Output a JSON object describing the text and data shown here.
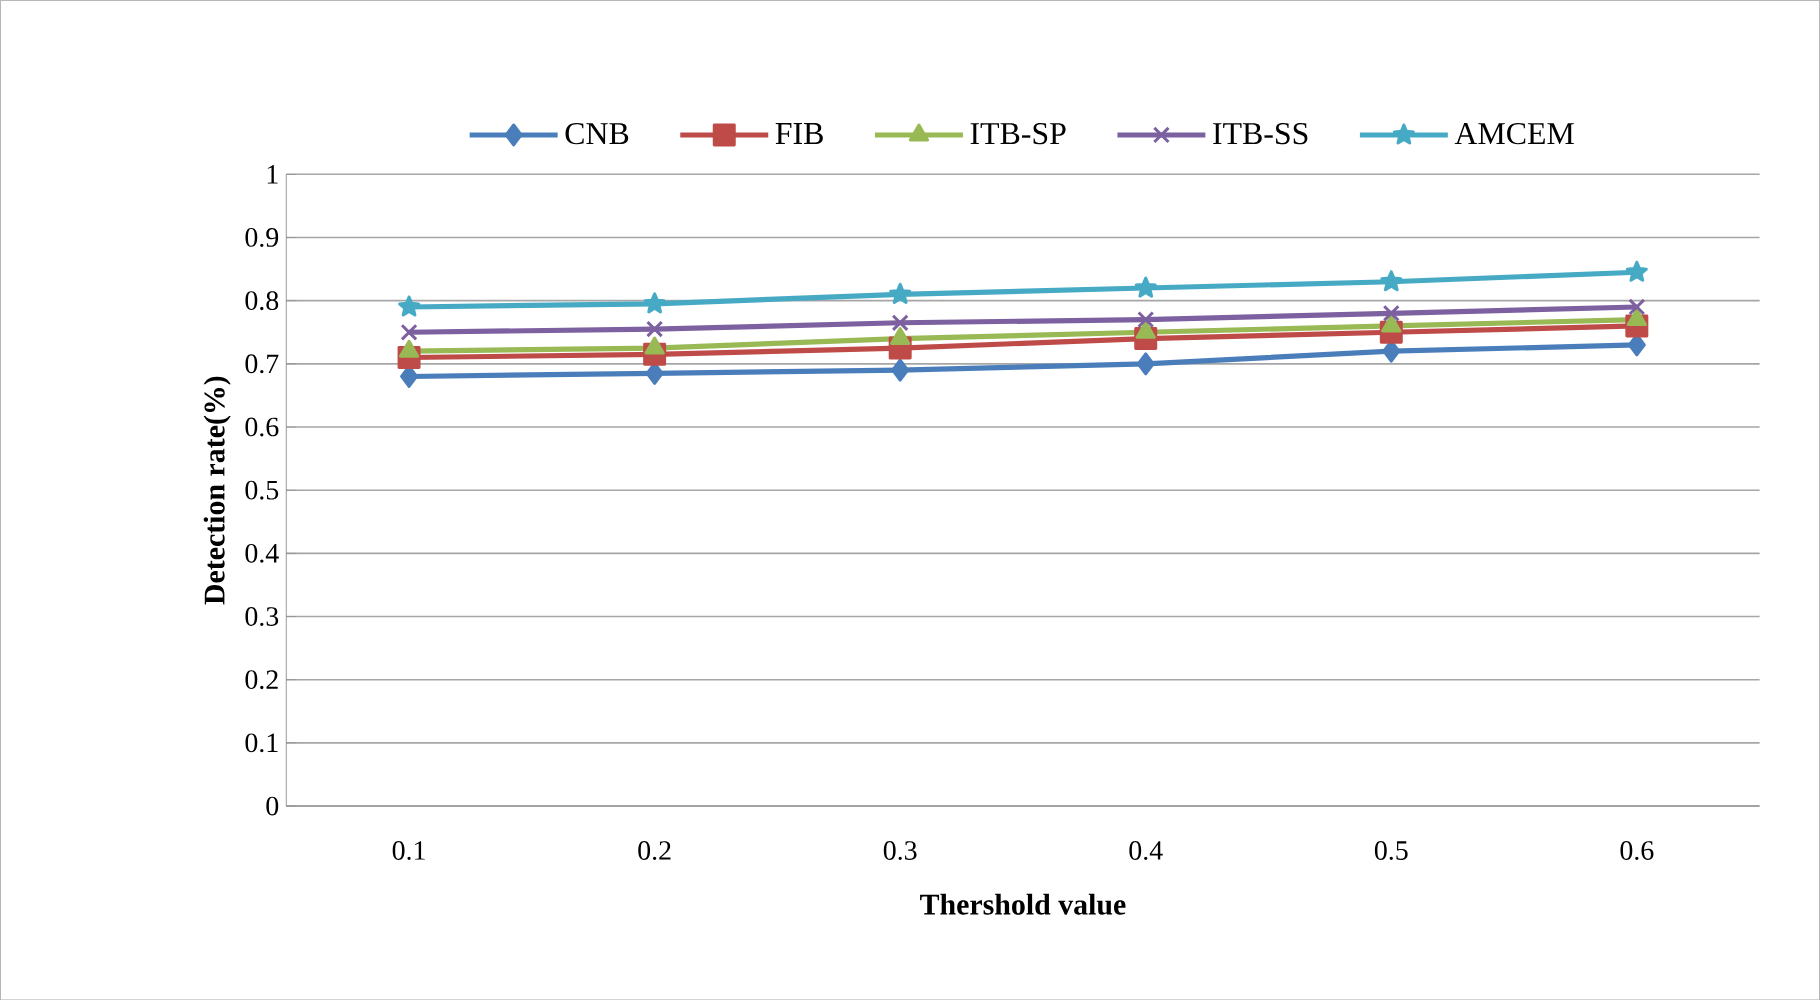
{
  "chart_data": {
    "type": "line",
    "xlabel": "Thershold value",
    "ylabel": "Detection rate(%)",
    "categories": [
      "0.1",
      "0.2",
      "0.3",
      "0.4",
      "0.5",
      "0.6"
    ],
    "series": [
      {
        "name": "CNB",
        "color": "#4a7ebb",
        "marker": "diamond",
        "values": [
          0.68,
          0.685,
          0.69,
          0.7,
          0.72,
          0.73
        ]
      },
      {
        "name": "FIB",
        "color": "#be4b48",
        "marker": "square",
        "values": [
          0.71,
          0.715,
          0.725,
          0.74,
          0.75,
          0.76
        ]
      },
      {
        "name": "ITB-SP",
        "color": "#98b954",
        "marker": "triangle",
        "values": [
          0.72,
          0.725,
          0.74,
          0.75,
          0.76,
          0.77
        ]
      },
      {
        "name": "ITB-SS",
        "color": "#7d60a0",
        "marker": "cross",
        "values": [
          0.75,
          0.755,
          0.765,
          0.77,
          0.78,
          0.79
        ]
      },
      {
        "name": "AMCEM",
        "color": "#46aac5",
        "marker": "star",
        "values": [
          0.79,
          0.795,
          0.81,
          0.82,
          0.83,
          0.845
        ]
      }
    ],
    "ylim": [
      0,
      1
    ],
    "yticks": [
      0,
      0.1,
      0.2,
      0.3,
      0.4,
      0.5,
      0.6,
      0.7,
      0.8,
      0.9,
      1
    ],
    "grid": "y",
    "legend": "top"
  }
}
